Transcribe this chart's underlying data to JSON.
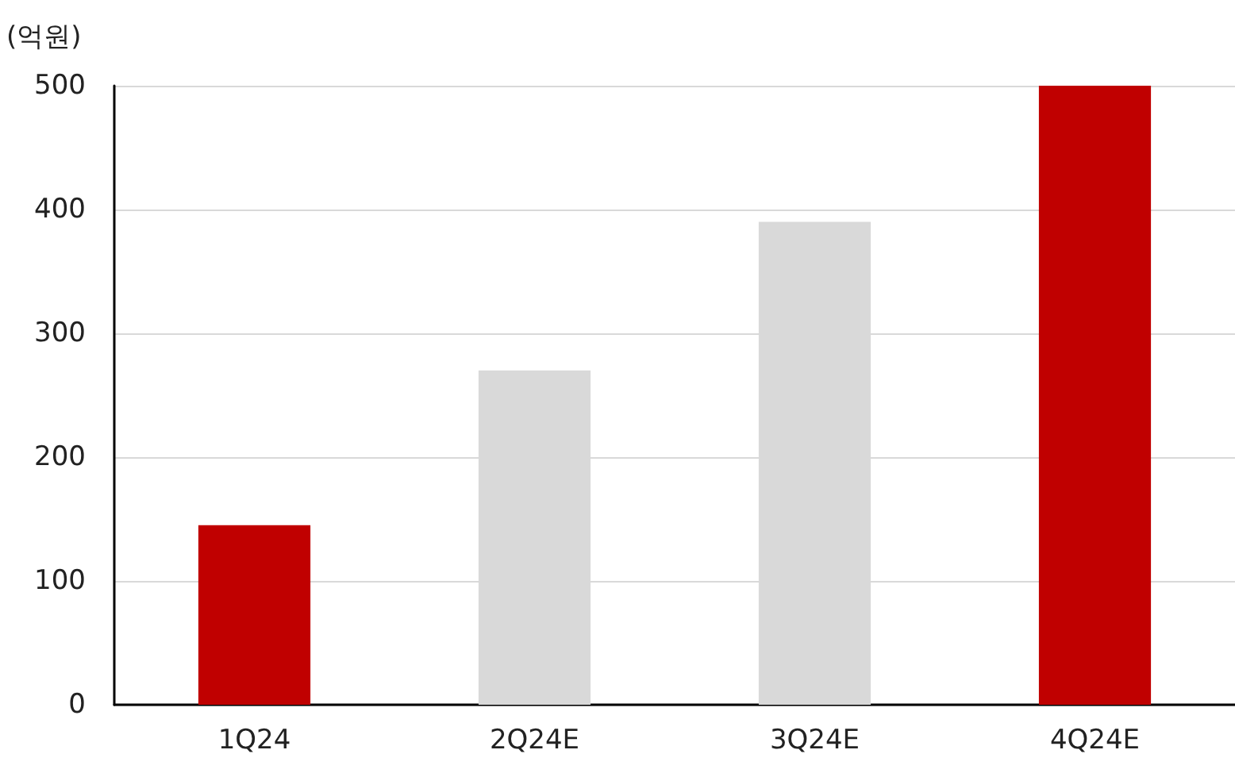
{
  "chart_data": {
    "type": "bar",
    "ylabel": "(억원)",
    "categories": [
      "1Q24",
      "2Q24E",
      "3Q24E",
      "4Q24E"
    ],
    "values": [
      145,
      270,
      390,
      500
    ],
    "colors": [
      "#c00000",
      "#d9d9d9",
      "#d9d9d9",
      "#c00000"
    ],
    "ylim": [
      0,
      500
    ],
    "yticks": [
      0,
      100,
      200,
      300,
      400,
      500
    ],
    "grid": "y"
  }
}
